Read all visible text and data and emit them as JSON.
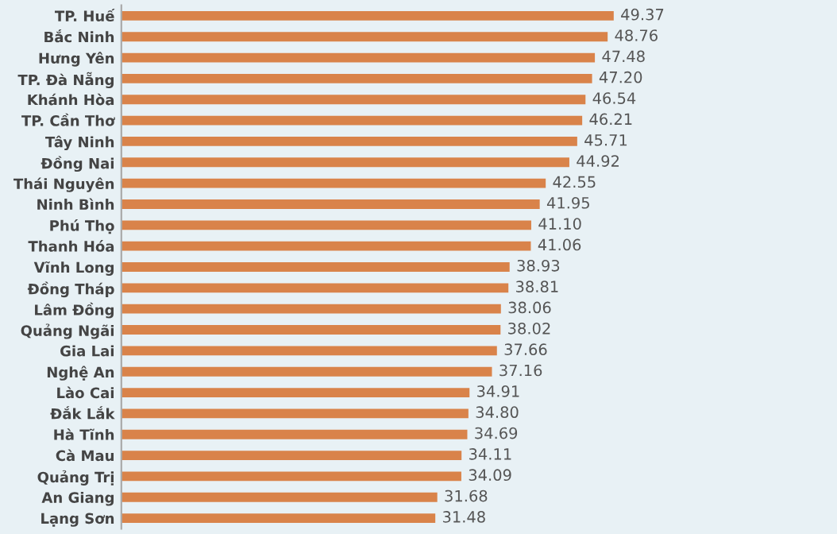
{
  "chart_data": {
    "type": "bar",
    "orientation": "horizontal",
    "categories": [
      "TP. Huế",
      "Bắc Ninh",
      "Hưng Yên",
      "TP. Đà Nẵng",
      "Khánh Hòa",
      "TP. Cần Thơ",
      "Tây Ninh",
      "Đồng Nai",
      "Thái Nguyên",
      "Ninh Bình",
      "Phú Thọ",
      "Thanh Hóa",
      "Vĩnh Long",
      "Đồng Tháp",
      "Lâm Đồng",
      "Quảng Ngãi",
      "Gia Lai",
      "Nghệ An",
      "Lào Cai",
      "Đắk Lắk",
      "Hà Tĩnh",
      "Cà Mau",
      "Quảng Trị",
      "An Giang",
      "Lạng Sơn"
    ],
    "values": [
      49.37,
      48.76,
      47.48,
      47.2,
      46.54,
      46.21,
      45.71,
      44.92,
      42.55,
      41.95,
      41.1,
      41.06,
      38.93,
      38.81,
      38.06,
      38.02,
      37.66,
      37.16,
      34.91,
      34.8,
      34.69,
      34.11,
      34.09,
      31.68,
      31.48
    ],
    "value_labels": [
      "49.37",
      "48.76",
      "47.48",
      "47.20",
      "46.54",
      "46.21",
      "45.71",
      "44.92",
      "42.55",
      "41.95",
      "41.10",
      "41.06",
      "38.93",
      "38.81",
      "38.06",
      "38.02",
      "37.66",
      "37.16",
      "34.91",
      "34.80",
      "34.69",
      "34.11",
      "34.09",
      "31.68",
      "31.48"
    ],
    "color": "#d9834a",
    "grid": false,
    "legend": false
  }
}
